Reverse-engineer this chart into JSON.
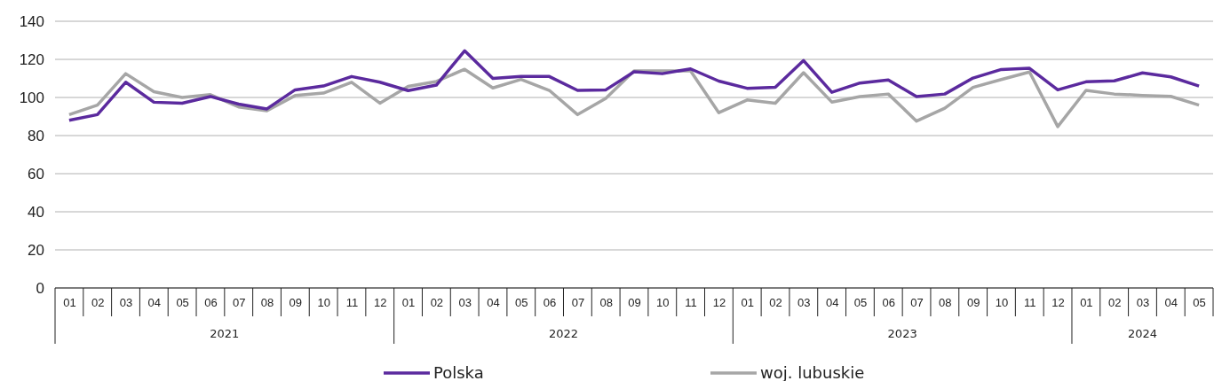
{
  "chart_data": {
    "type": "line",
    "categories": [
      "01",
      "02",
      "03",
      "04",
      "05",
      "06",
      "07",
      "08",
      "09",
      "10",
      "11",
      "12",
      "01",
      "02",
      "03",
      "04",
      "05",
      "06",
      "07",
      "08",
      "09",
      "10",
      "11",
      "12",
      "01",
      "02",
      "03",
      "04",
      "05",
      "06",
      "07",
      "08",
      "09",
      "10",
      "11",
      "12",
      "01",
      "02",
      "03",
      "04",
      "05"
    ],
    "annotations": [
      "2021",
      "2022",
      "2023",
      "2024"
    ],
    "series": [
      {
        "name": "Polska",
        "color": "#5b2a9e",
        "values": [
          88,
          91,
          108,
          97.5,
          97,
          100.5,
          96.5,
          94,
          104,
          106,
          111,
          108,
          103.6,
          106.5,
          124.5,
          110,
          111,
          111,
          103.7,
          104,
          113.5,
          112.5,
          115,
          108.6,
          104.8,
          105.3,
          119.4,
          102.7,
          107.6,
          109.2,
          100.5,
          101.8,
          110.2,
          114.7,
          115.3,
          104,
          108.2,
          108.7,
          112.9,
          110.8,
          106
        ]
      },
      {
        "name": "woj. lubuskie",
        "color": "#a6a6a6",
        "values": [
          91,
          96,
          112.5,
          103,
          100,
          101.5,
          95,
          93,
          101,
          102.3,
          108,
          97,
          105.8,
          108.4,
          114.8,
          105,
          109.5,
          103.7,
          91,
          99.5,
          114,
          114,
          114,
          92,
          98.7,
          97,
          113,
          97.6,
          100.5,
          101.8,
          87.6,
          94.4,
          105.3,
          109.4,
          113.4,
          84.7,
          103.7,
          101.8,
          101.1,
          100.6,
          96
        ]
      }
    ],
    "ylim": [
      0,
      140
    ],
    "yticks": [
      0,
      20,
      40,
      60,
      80,
      100,
      120,
      140
    ],
    "grid": "y",
    "legend": "bottom",
    "marker": "none",
    "line_style": "solid"
  }
}
